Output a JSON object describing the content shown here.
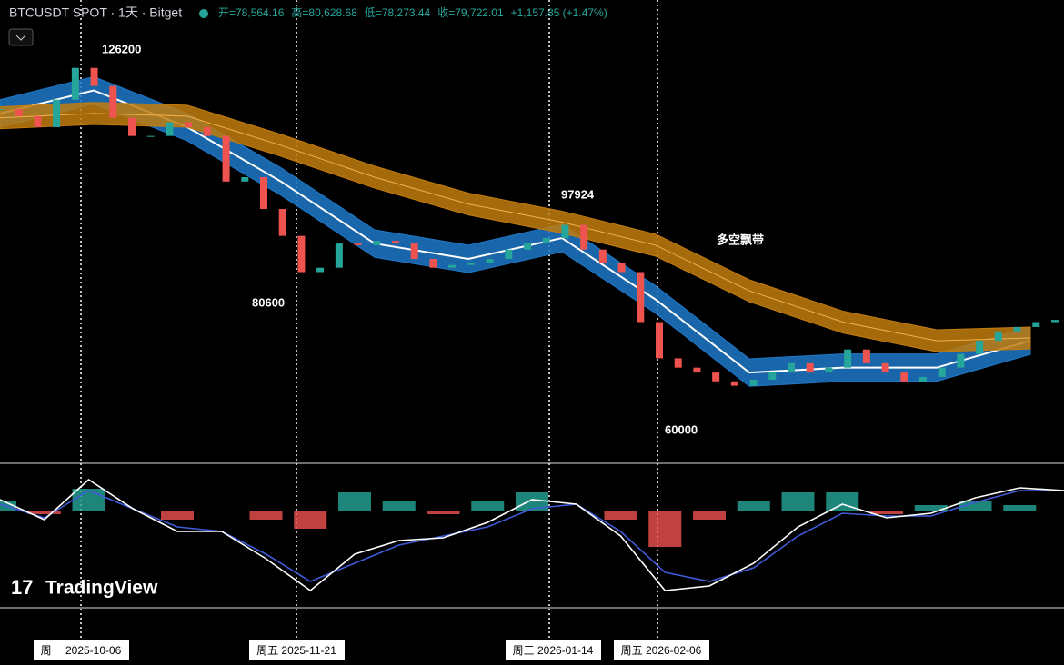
{
  "chart_data": {
    "type": "candlestick",
    "title": "BTCUSDT SPOT · 1天 · Bitget",
    "ohlc": [
      "开=78,564.16",
      "高=80,628.68",
      "低=78,273.44",
      "收=79,722.01",
      "+1,157.85 (+1.47%)"
    ],
    "annotations": [
      "126200",
      "80600",
      "97924",
      "60000",
      "多空飘带"
    ],
    "watermark": "TradingView",
    "dates": [
      "周一 2025-10-06",
      "周五 2025-11-21",
      "周三 2026-01-14",
      "周五 2026-02-06"
    ],
    "ylim": [
      51700,
      130300
    ],
    "closes": [
      115400,
      114100,
      112100,
      117100,
      122900,
      119600,
      113800,
      110500,
      110500,
      113000,
      112100,
      110500,
      102200,
      103000,
      97200,
      92300,
      85700,
      86500,
      90900,
      90600,
      91400,
      90900,
      88100,
      86500,
      87000,
      87300,
      88100,
      89800,
      90900,
      91900,
      94300,
      89800,
      87300,
      85700,
      76600,
      70000,
      68300,
      67400,
      65800,
      65000,
      66100,
      67400,
      69100,
      67400,
      68300,
      71600,
      69100,
      67400,
      65800,
      66600,
      68300,
      70800,
      73200,
      74900,
      75700,
      76600,
      77000
    ],
    "bands": [
      {
        "name": "blue",
        "color": "#1f78c8",
        "width": 2500,
        "values": [
          114600,
          118800,
          112100,
          102200,
          90900,
          88100,
          91900,
          80700,
          67400,
          68300,
          68300,
          73200
        ]
      },
      {
        "name": "orange",
        "color": "#c27c0e",
        "width": 2000,
        "values": [
          113800,
          114600,
          114100,
          108800,
          103000,
          98100,
          94800,
          90600,
          82300,
          76600,
          73200,
          73700
        ]
      }
    ],
    "macd": [
      12,
      -10,
      34,
      2,
      -23,
      -23,
      -53,
      -88,
      -48,
      -33,
      -30,
      -13,
      12,
      7,
      -28,
      -88,
      -83,
      -58,
      -18,
      7,
      -8,
      -3,
      14,
      25,
      22
    ],
    "signal": [
      7,
      -8,
      22,
      2,
      -18,
      -23,
      -48,
      -78,
      -58,
      -38,
      -28,
      -18,
      2,
      7,
      -23,
      -68,
      -78,
      -63,
      -28,
      -3,
      -6,
      -6,
      9,
      22,
      22
    ],
    "histogram": [
      5,
      -2,
      12,
      0,
      -5,
      0,
      -5,
      -10,
      10,
      5,
      -2,
      5,
      10,
      0,
      -5,
      -20,
      -5,
      5,
      10,
      10,
      -2,
      3,
      5,
      3,
      0
    ]
  }
}
